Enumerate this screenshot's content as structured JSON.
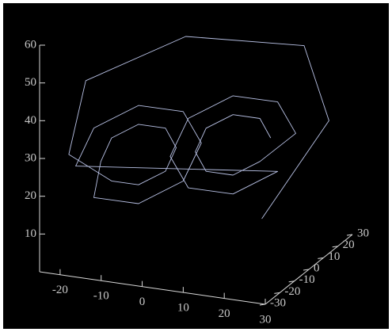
{
  "chart_data": {
    "type": "line3d",
    "x": [
      14.5,
      12.8,
      8.5,
      4.2,
      2.5,
      4.2,
      8.5,
      12.8,
      18.5,
      15.6,
      8.5,
      1.4,
      -1.5,
      1.4,
      8.5,
      15.6,
      -18.5,
      -15.6,
      -8.5,
      -1.4,
      1.5,
      -1.4,
      -8.5,
      -15.6,
      -14.5,
      -12.8,
      -8.5,
      -4.2,
      -2.5,
      -4.2,
      -8.5,
      -12.8,
      -20,
      -18,
      0,
      20,
      25,
      15
    ],
    "y": [
      17.5,
      14.9,
      8.5,
      2.1,
      -0.5,
      2.1,
      8.5,
      14.9,
      23.5,
      19.2,
      8.5,
      -2.2,
      -6.5,
      -2.2,
      8.5,
      19.2,
      -23.5,
      -19.2,
      -8.5,
      2.2,
      6.5,
      2.2,
      -8.5,
      -19.2,
      -17.5,
      -14.9,
      -8.5,
      -2.1,
      0.5,
      -2.1,
      -8.5,
      -14.9,
      -24,
      -18,
      0,
      25,
      28,
      10
    ],
    "z": [
      27,
      32.7,
      35,
      32.7,
      27,
      21.3,
      19,
      21.3,
      27,
      36.2,
      40,
      36.2,
      27,
      17.8,
      14,
      17.8,
      27,
      36.2,
      40,
      36.2,
      27,
      17.8,
      14,
      17.8,
      27,
      32.7,
      35,
      32.7,
      27,
      21.3,
      19,
      21.3,
      30,
      48,
      57,
      50,
      30,
      8
    ],
    "color": "#b9c2e6",
    "xlim": [
      -25,
      30
    ],
    "xticks": [
      -20,
      -10,
      0,
      10,
      20,
      30
    ],
    "ylim": [
      -30,
      30
    ],
    "yticks": [
      -30,
      -20,
      -10,
      0,
      10,
      20,
      30
    ],
    "zlim": [
      0,
      60
    ],
    "zticks": [
      10,
      20,
      30,
      40,
      50,
      60
    ]
  }
}
